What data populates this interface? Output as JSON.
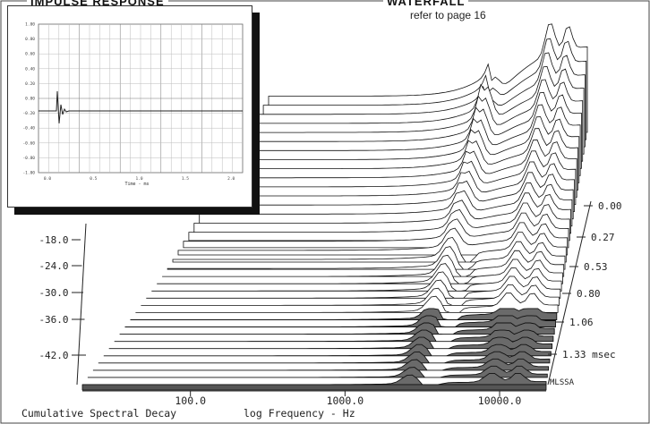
{
  "header": {
    "left_title": "IMPULSE RESPONSE",
    "right_title": "WATERFALL",
    "right_subtitle": "refer to page 16"
  },
  "inset": {
    "title": "IMPULSE RESPONSE",
    "y_ticks": [
      "1.00",
      "0.80",
      "0.60",
      "0.40",
      "0.20",
      "0.00",
      "-0.20",
      "-0.40",
      "-0.60",
      "-0.80",
      "-1.00"
    ],
    "x_ticks": [
      "0.0",
      "0.5",
      "1.0",
      "1.5",
      "2.0"
    ],
    "xlabel": "Time - ms"
  },
  "chart_data": {
    "type": "area",
    "title": "Cumulative Spectral Decay",
    "xlabel": "log Frequency - Hz",
    "x_scale": "log",
    "xlim": [
      20,
      20000
    ],
    "x_ticks": [
      {
        "value": 100,
        "label": "100.0"
      },
      {
        "value": 1000,
        "label": "1000.0"
      },
      {
        "value": 10000,
        "label": "10000.0"
      }
    ],
    "y_ticks": [
      "-18.0",
      "-24.0",
      "-30.0",
      "-36.0",
      "-42.0"
    ],
    "ylim": [
      -48,
      6
    ],
    "z_ticks": [
      "0.00",
      "0.27",
      "0.53",
      "0.80",
      "1.06",
      "1.33 msec"
    ],
    "z_label_end": "MLSSA",
    "slice_count": 36,
    "colors": {
      "line": "#111111",
      "fill": "#ffffff",
      "floor": "#555555"
    }
  }
}
